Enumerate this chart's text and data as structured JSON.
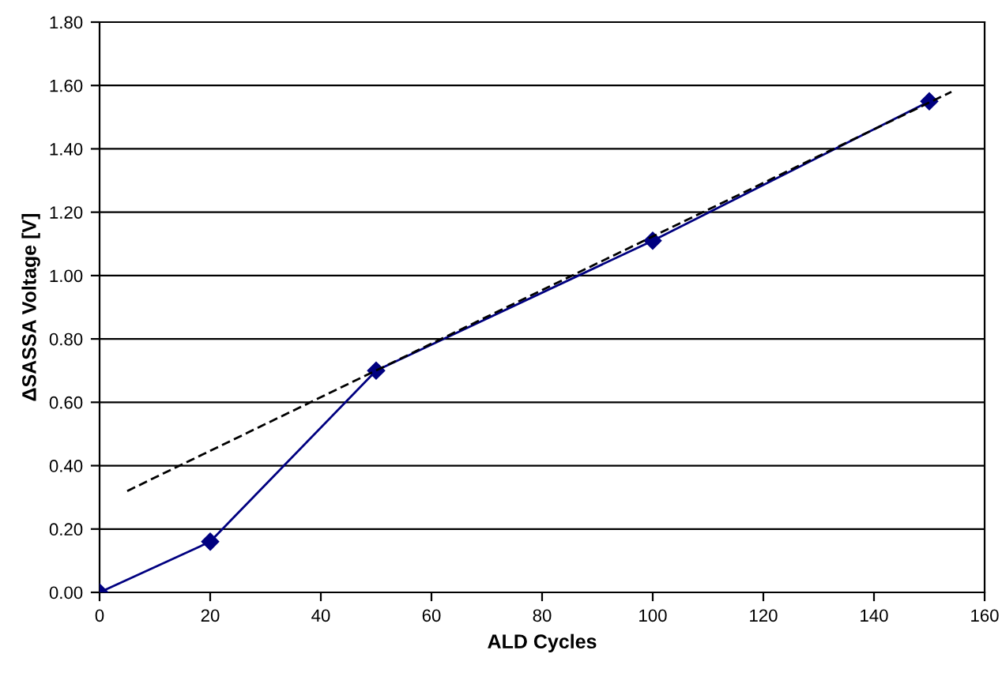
{
  "chart_data": {
    "type": "line",
    "xlabel": "ALD Cycles",
    "ylabel": "ΔSASSA Voltage [V]",
    "series": [
      {
        "color": "#000080",
        "x": [
          0,
          20,
          50,
          100,
          150
        ],
        "values": [
          0.0,
          0.16,
          0.7,
          1.11,
          1.55
        ],
        "marker": "diamond",
        "line_style": "solid"
      },
      {
        "color": "#000000",
        "x": [
          5,
          154
        ],
        "values": [
          0.32,
          1.58
        ],
        "marker": "none",
        "line_style": "dashed"
      }
    ],
    "xlim": [
      0,
      160
    ],
    "xticks": [
      0,
      20,
      40,
      60,
      80,
      100,
      120,
      140,
      160
    ],
    "ylim": [
      0,
      1.8
    ],
    "yticks": [
      {
        "value": 0,
        "label": "0.00"
      },
      {
        "value": 0.2,
        "label": "0.20"
      },
      {
        "value": 0.4,
        "label": "0.40"
      },
      {
        "value": 0.6,
        "label": "0.60"
      },
      {
        "value": 0.8,
        "label": "0.80"
      },
      {
        "value": 1.0,
        "label": "1.00"
      },
      {
        "value": 1.2,
        "label": "1.20"
      },
      {
        "value": 1.4,
        "label": "1.40"
      },
      {
        "value": 1.6,
        "label": "1.60"
      },
      {
        "value": 1.8,
        "label": "1.80"
      }
    ],
    "grid": "y",
    "legend": false
  }
}
